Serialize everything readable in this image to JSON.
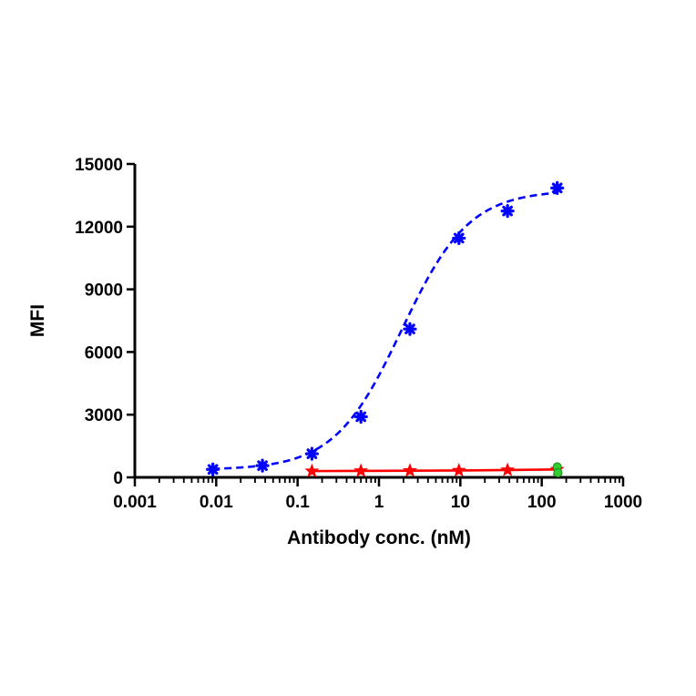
{
  "chart_data": {
    "type": "scatter",
    "title": "",
    "xlabel": "Antibody conc. (nM)",
    "ylabel": "MFI",
    "x_scale": "log",
    "xlim": [
      0.001,
      1000
    ],
    "ylim": [
      0,
      15000
    ],
    "x_ticks": [
      "0.001",
      "0.01",
      "0.1",
      "1",
      "10",
      "100",
      "1000"
    ],
    "y_ticks": [
      "0",
      "3000",
      "6000",
      "9000",
      "12000",
      "15000"
    ],
    "grid": false,
    "legend": "none",
    "series": [
      {
        "color": "#0000ff",
        "marker": "asterisk",
        "line_style": "dashed-fit",
        "points": [
          {
            "x": 0.0091,
            "y": 380
          },
          {
            "x": 0.037,
            "y": 560
          },
          {
            "x": 0.15,
            "y": 1130
          },
          {
            "x": 0.6,
            "y": 2900
          },
          {
            "x": 2.4,
            "y": 7100
          },
          {
            "x": 9.6,
            "y": 11450
          },
          {
            "x": 38,
            "y": 12750
          },
          {
            "x": 155,
            "y": 13850
          }
        ]
      },
      {
        "color": "#ff0000",
        "marker": "star",
        "line_style": "solid",
        "points": [
          {
            "x": 0.15,
            "y": 300
          },
          {
            "x": 0.6,
            "y": 310
          },
          {
            "x": 2.4,
            "y": 320
          },
          {
            "x": 9.6,
            "y": 330
          },
          {
            "x": 38,
            "y": 350
          },
          {
            "x": 155,
            "y": 380
          }
        ]
      },
      {
        "color": "#33cc33",
        "marker": "circle",
        "line_style": "solid",
        "points": [
          {
            "x": 155,
            "y": 500
          },
          {
            "x": 158,
            "y": 220
          }
        ]
      }
    ]
  }
}
